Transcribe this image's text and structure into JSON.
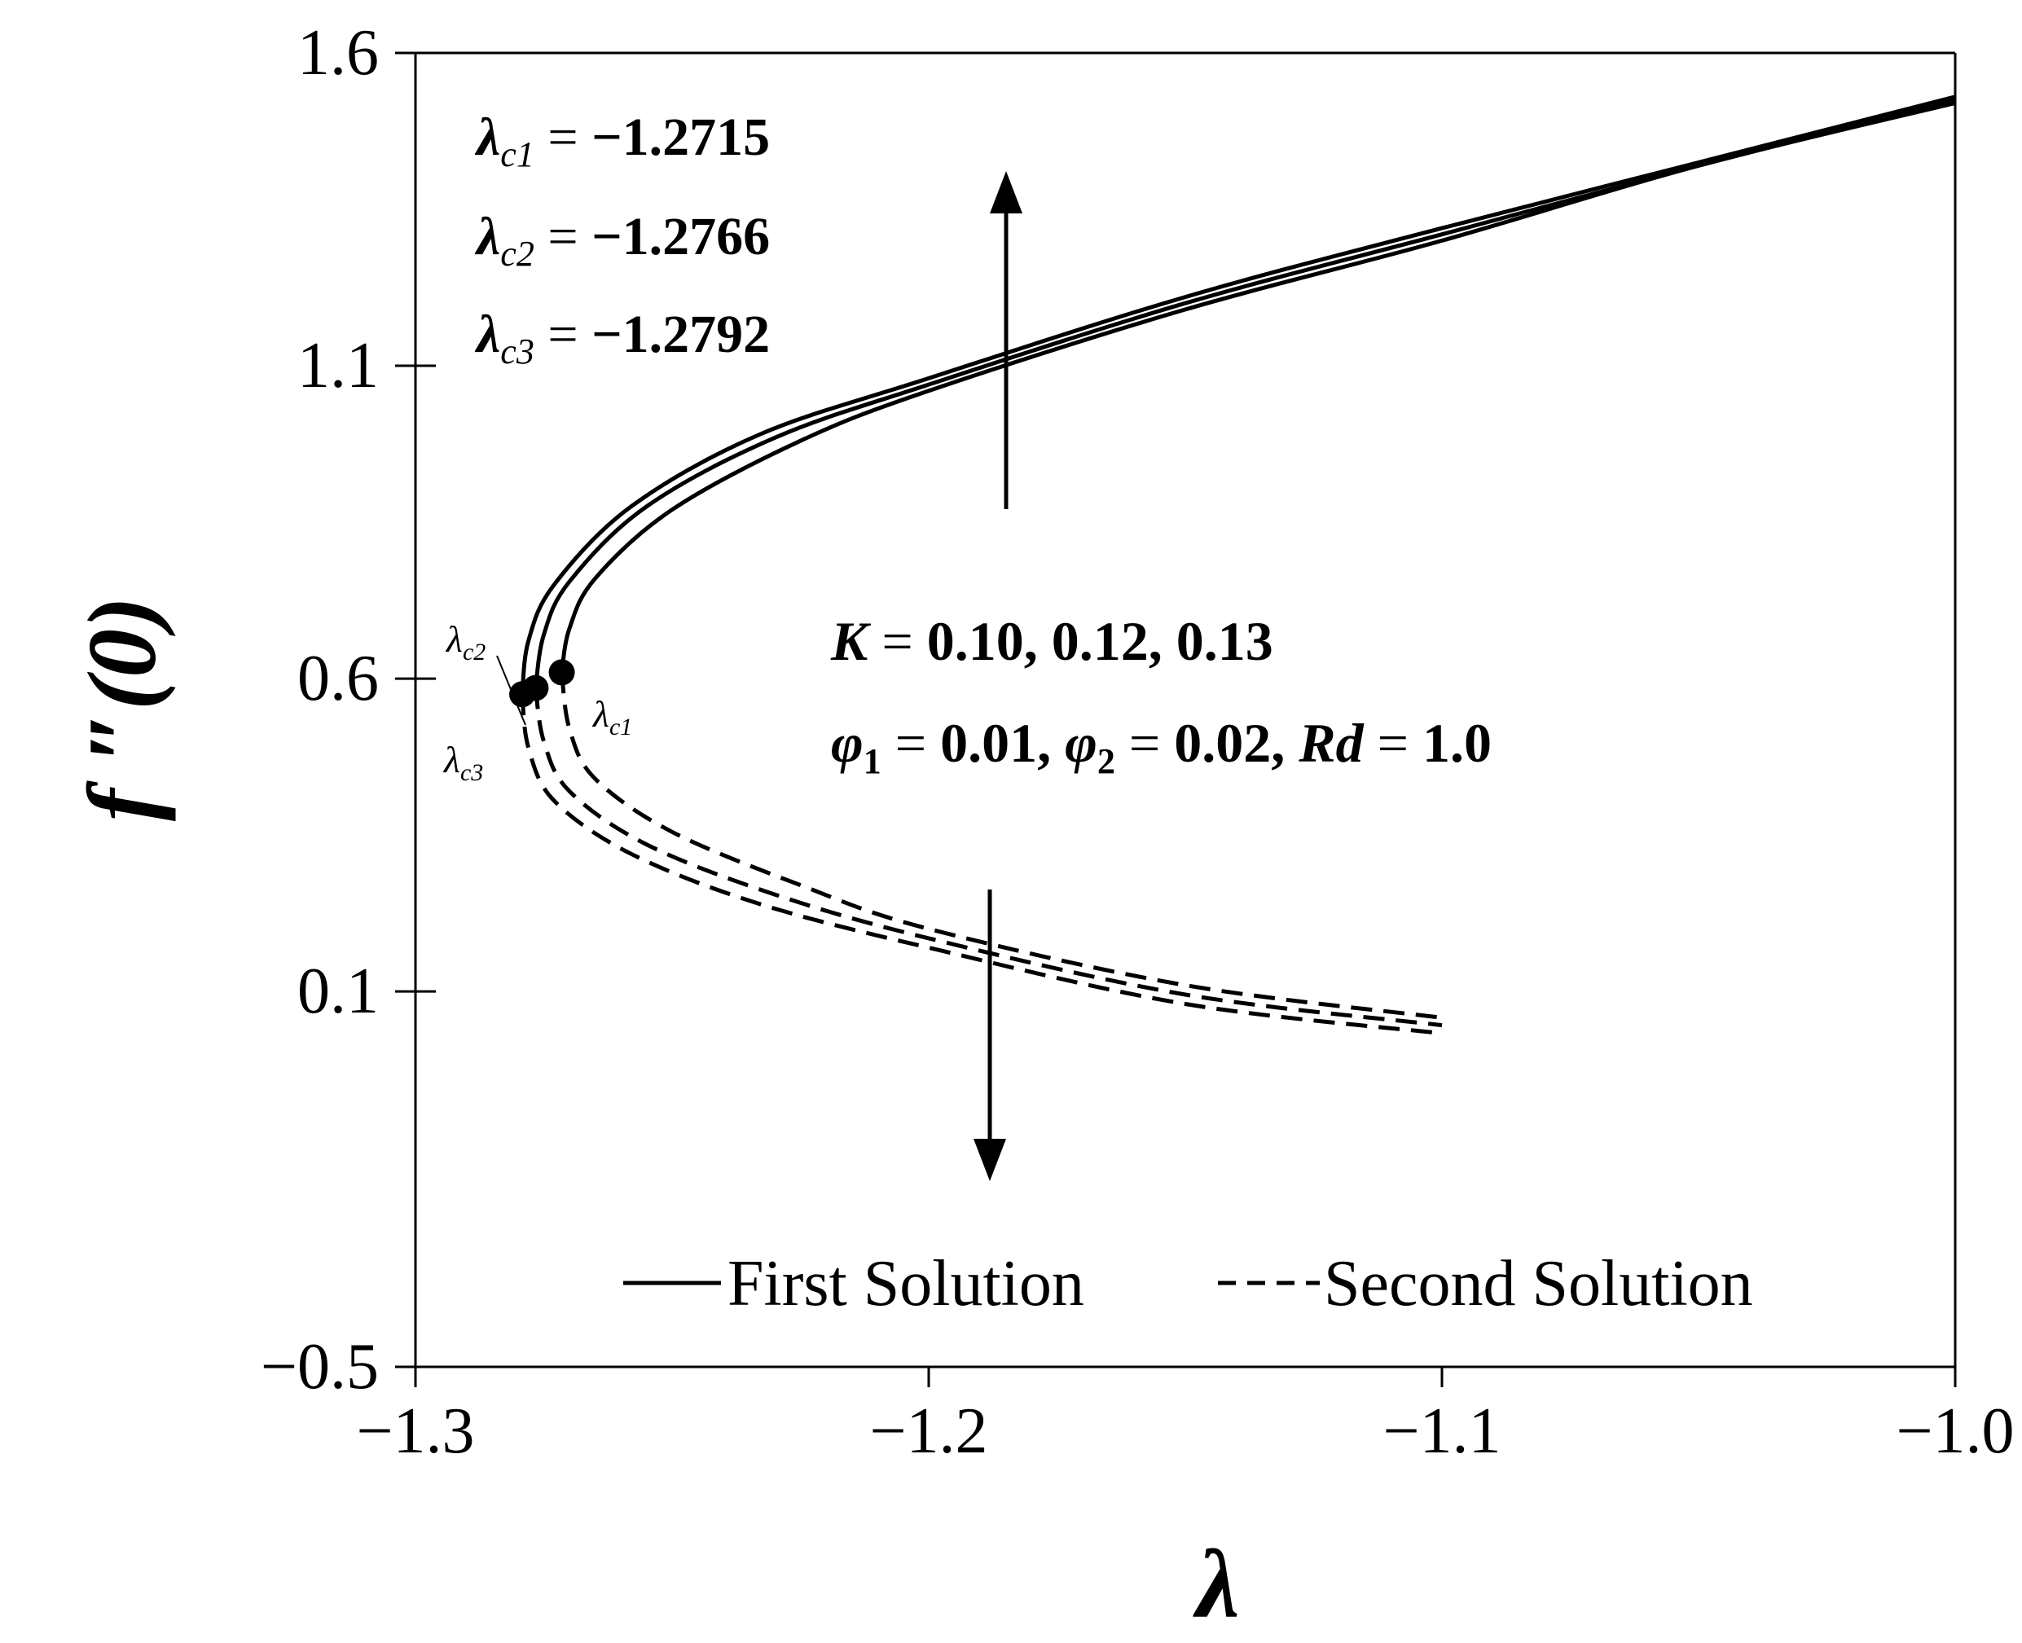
{
  "chart_data": {
    "type": "line",
    "xlabel": "λ",
    "ylabel": "f ″(0)",
    "xlim": [
      -1.3,
      -1.0
    ],
    "ylim": [
      -0.5,
      1.6
    ],
    "x_ticks": [
      "−1.3",
      "−1.2",
      "−1.1",
      "−1.0"
    ],
    "y_ticks": [
      "1.6",
      "1.1",
      "0.6",
      "0.1",
      "−0.5"
    ],
    "x_tick_values": [
      -1.3,
      -1.2,
      -1.1,
      -1.0
    ],
    "y_tick_values": [
      1.6,
      1.1,
      0.6,
      0.1,
      -0.5
    ],
    "grid": false,
    "legend_position": "bottom",
    "legend": [
      {
        "label": "First Solution",
        "style": "solid"
      },
      {
        "label": "Second Solution",
        "style": "dashed"
      }
    ],
    "critical_points": [
      {
        "label": "λc1",
        "value": "−1.2715",
        "x": -1.2715,
        "y": 0.61
      },
      {
        "label": "λc2",
        "value": "−1.2766",
        "x": -1.2766,
        "y": 0.585
      },
      {
        "label": "λc3",
        "value": "−1.2792",
        "x": -1.2792,
        "y": 0.575
      }
    ],
    "series": [
      {
        "style": "solid",
        "lambda_c": -1.2715,
        "points": [
          [
            -1.2715,
            0.61
          ],
          [
            -1.27,
            0.68
          ],
          [
            -1.265,
            0.76
          ],
          [
            -1.25,
            0.87
          ],
          [
            -1.225,
            0.98
          ],
          [
            -1.2,
            1.06
          ],
          [
            -1.15,
            1.19
          ],
          [
            -1.1,
            1.3
          ],
          [
            -1.05,
            1.42
          ],
          [
            -1.0,
            1.52
          ]
        ]
      },
      {
        "style": "solid",
        "lambda_c": -1.2766,
        "points": [
          [
            -1.2766,
            0.585
          ],
          [
            -1.275,
            0.67
          ],
          [
            -1.27,
            0.755
          ],
          [
            -1.255,
            0.875
          ],
          [
            -1.23,
            0.985
          ],
          [
            -1.2,
            1.07
          ],
          [
            -1.15,
            1.2
          ],
          [
            -1.1,
            1.31
          ],
          [
            -1.05,
            1.42
          ],
          [
            -1.0,
            1.525
          ]
        ]
      },
      {
        "style": "solid",
        "lambda_c": -1.2792,
        "points": [
          [
            -1.2792,
            0.575
          ],
          [
            -1.278,
            0.66
          ],
          [
            -1.273,
            0.75
          ],
          [
            -1.258,
            0.875
          ],
          [
            -1.233,
            0.99
          ],
          [
            -1.2,
            1.08
          ],
          [
            -1.15,
            1.21
          ],
          [
            -1.1,
            1.32
          ],
          [
            -1.05,
            1.425
          ],
          [
            -1.0,
            1.53
          ]
        ]
      },
      {
        "style": "dashed",
        "lambda_c": -1.2715,
        "points": [
          [
            -1.2715,
            0.61
          ],
          [
            -1.27,
            0.52
          ],
          [
            -1.265,
            0.44
          ],
          [
            -1.25,
            0.355
          ],
          [
            -1.225,
            0.27
          ],
          [
            -1.2,
            0.2
          ],
          [
            -1.15,
            0.11
          ],
          [
            -1.1,
            0.058
          ]
        ]
      },
      {
        "style": "dashed",
        "lambda_c": -1.2766,
        "points": [
          [
            -1.2766,
            0.585
          ],
          [
            -1.275,
            0.5
          ],
          [
            -1.27,
            0.42
          ],
          [
            -1.255,
            0.335
          ],
          [
            -1.23,
            0.255
          ],
          [
            -1.2,
            0.185
          ],
          [
            -1.15,
            0.095
          ],
          [
            -1.1,
            0.046
          ]
        ]
      },
      {
        "style": "dashed",
        "lambda_c": -1.2792,
        "points": [
          [
            -1.2792,
            0.575
          ],
          [
            -1.278,
            0.49
          ],
          [
            -1.273,
            0.405
          ],
          [
            -1.258,
            0.32
          ],
          [
            -1.233,
            0.24
          ],
          [
            -1.2,
            0.17
          ],
          [
            -1.15,
            0.08
          ],
          [
            -1.1,
            0.033
          ]
        ]
      }
    ],
    "annotations": {
      "lambda_lines": [
        {
          "sub": "c1",
          "value": "−1.2715"
        },
        {
          "sub": "c2",
          "value": "−1.2766"
        },
        {
          "sub": "c3",
          "value": "−1.2792"
        }
      ],
      "params": {
        "K_label": "K",
        "K_values": "0.10,  0.12,  0.13",
        "phi1_value": "0.01,",
        "phi2_value": "0.02,",
        "Rd_label": "Rd",
        "Rd_value": "1.0"
      }
    }
  }
}
